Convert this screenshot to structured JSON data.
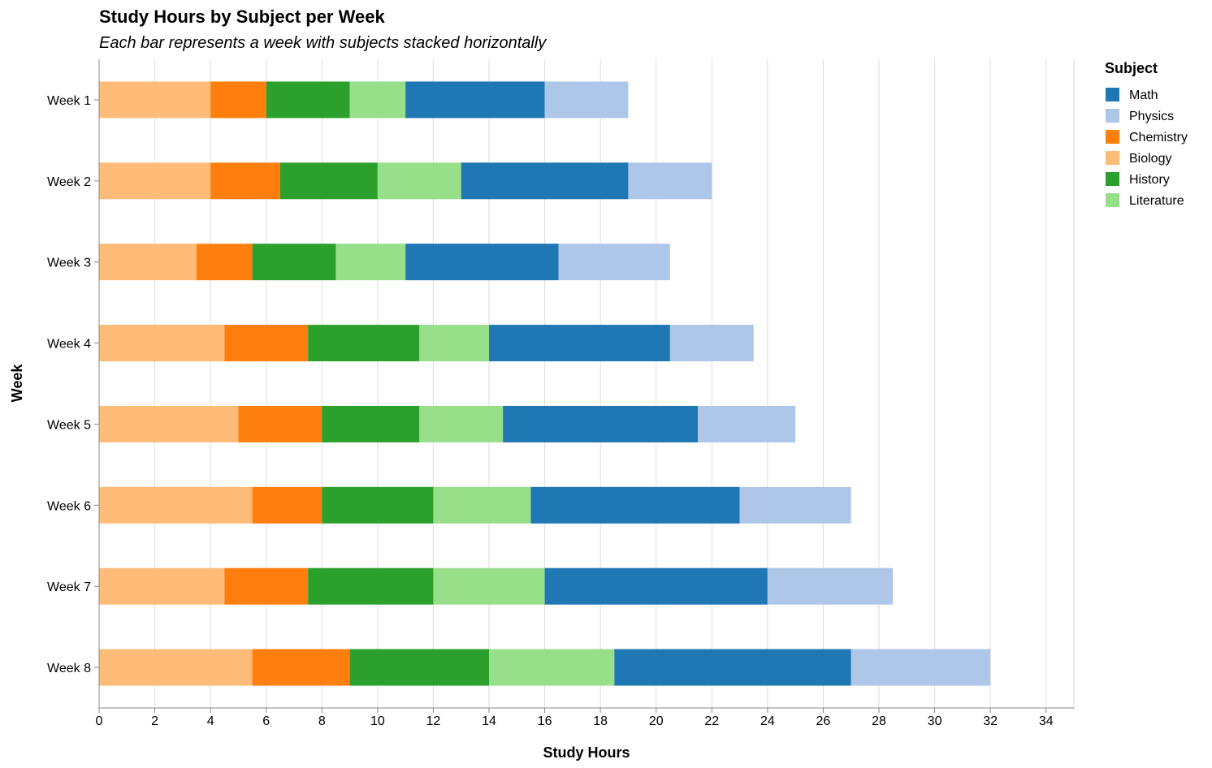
{
  "chart_data": {
    "type": "bar",
    "orientation": "horizontal",
    "stacked": true,
    "title": "Study Hours by Subject per Week",
    "subtitle": "Each bar represents a week with subjects stacked horizontally",
    "xlabel": "Study Hours",
    "ylabel": "Week",
    "xlim": [
      0,
      35
    ],
    "x_ticks": [
      "0",
      "2",
      "4",
      "6",
      "8",
      "10",
      "12",
      "14",
      "16",
      "18",
      "20",
      "22",
      "24",
      "26",
      "28",
      "30",
      "32",
      "34"
    ],
    "grid": "vertical",
    "categories": [
      "Week 1",
      "Week 2",
      "Week 3",
      "Week 4",
      "Week 5",
      "Week 6",
      "Week 7",
      "Week 8"
    ],
    "stack_order": [
      "Biology",
      "Chemistry",
      "History",
      "Literature",
      "Math",
      "Physics"
    ],
    "series": [
      {
        "name": "Math",
        "color": "#1f77b4",
        "values": [
          5,
          6,
          5.5,
          6.5,
          7,
          7.5,
          8,
          8.5
        ]
      },
      {
        "name": "Physics",
        "color": "#aec7e8",
        "values": [
          3,
          3,
          4,
          3,
          3.5,
          4,
          4.5,
          5
        ]
      },
      {
        "name": "Chemistry",
        "color": "#ff7f0e",
        "values": [
          2,
          2.5,
          2,
          3,
          3,
          2.5,
          3,
          3.5
        ]
      },
      {
        "name": "Biology",
        "color": "#ffbb78",
        "values": [
          4,
          4,
          3.5,
          4.5,
          5,
          5.5,
          4.5,
          5.5
        ]
      },
      {
        "name": "History",
        "color": "#2ca02c",
        "values": [
          3,
          3.5,
          3,
          4,
          3.5,
          4,
          4.5,
          5
        ]
      },
      {
        "name": "Literature",
        "color": "#98df8a",
        "values": [
          2,
          3,
          2.5,
          2.5,
          3,
          3.5,
          4,
          4.5
        ]
      }
    ],
    "legend": {
      "title": "Subject",
      "position": "right"
    }
  }
}
